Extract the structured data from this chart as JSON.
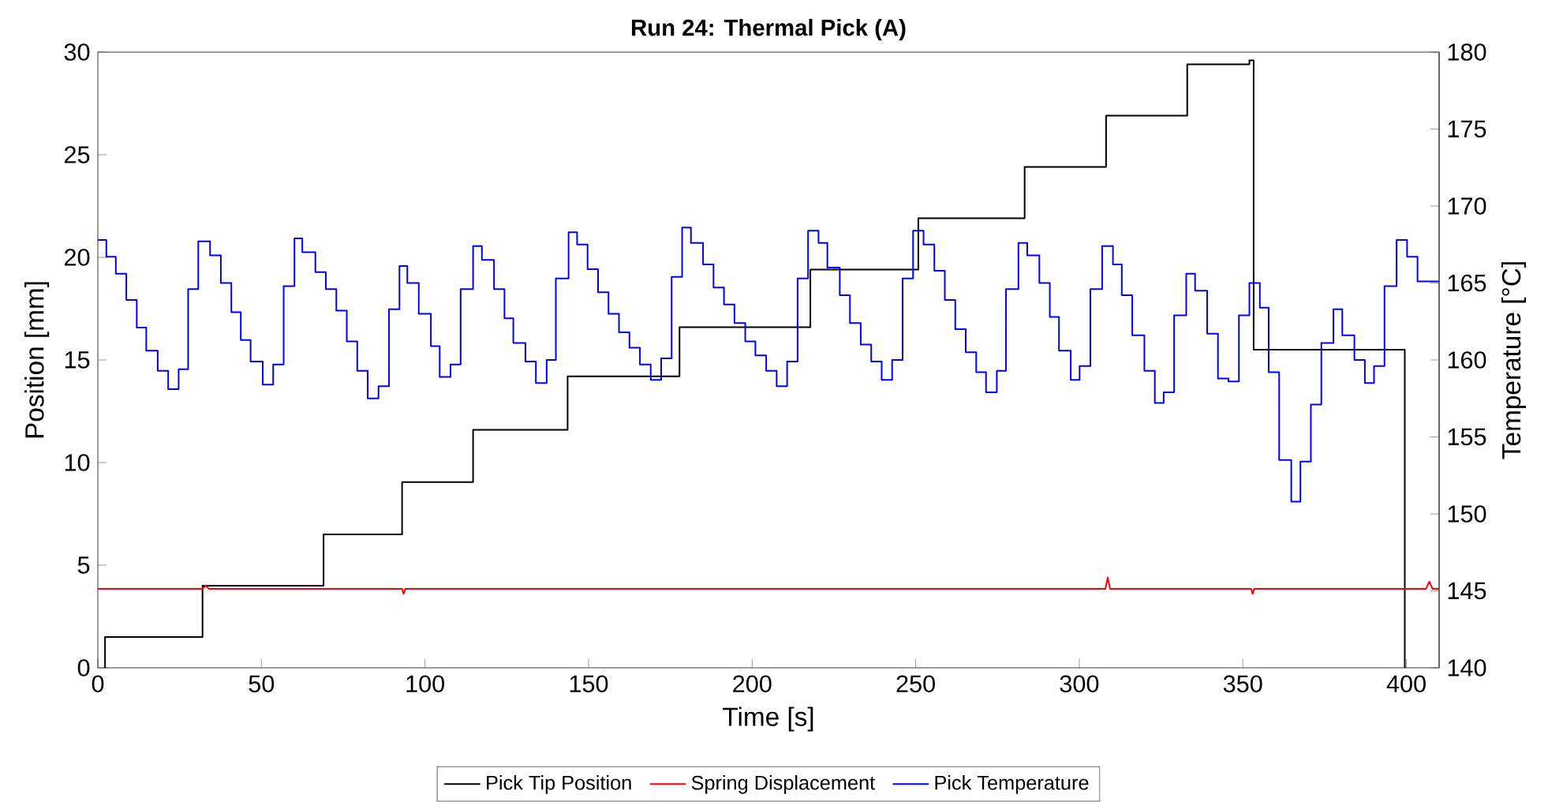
{
  "chart_data": {
    "type": "line",
    "title": "Run 24: Thermal Pick (A)",
    "xlabel": "Time [s]",
    "ylabel": "Position [mm]",
    "y2label": "Temperature [°C]",
    "xlim": [
      0,
      410
    ],
    "xticks": [
      0,
      50,
      100,
      150,
      200,
      250,
      300,
      350,
      400
    ],
    "ylim": [
      0,
      30
    ],
    "yticks": [
      0,
      5,
      10,
      15,
      20,
      25,
      30
    ],
    "y2lim": [
      140,
      180
    ],
    "y2ticks": [
      140,
      145,
      150,
      155,
      160,
      165,
      170,
      175,
      180
    ],
    "legend": "bottom",
    "grid": false,
    "marker": "none",
    "line_style": "solid",
    "series": [
      {
        "name": "Pick Tip Position",
        "type": "step",
        "color": "#000000",
        "x": [
          2.0,
          2.2,
          32,
          69,
          93,
          114.7,
          143.6,
          177.8,
          217.8,
          250.8,
          283.3,
          308.2,
          333,
          352,
          353.3,
          399.5
        ],
        "values": [
          0,
          1.5,
          4.0,
          6.5,
          9.05,
          11.6,
          14.2,
          16.6,
          19.4,
          21.9,
          24.4,
          26.9,
          29.4,
          29.6,
          15.5,
          0
        ]
      },
      {
        "name": "Spring Displacement",
        "color": "#ff0000",
        "x": [
          0,
          32,
          33,
          34,
          93,
          93.5,
          94,
          308,
          308.7,
          309.4,
          352.5,
          353,
          353.5,
          399,
          406,
          407,
          408,
          410
        ],
        "values": [
          3.85,
          3.85,
          4.0,
          3.85,
          3.85,
          3.6,
          3.85,
          3.85,
          4.4,
          3.85,
          3.85,
          3.6,
          3.85,
          3.85,
          3.85,
          4.2,
          3.85,
          3.85
        ]
      },
      {
        "name": "Pick Temperature",
        "type": "step",
        "axis": "y2",
        "color": "#0000ff",
        "x": [
          0,
          2.6,
          5.5,
          8.7,
          11.9,
          14.8,
          18.3,
          21.5,
          24.7,
          27.6,
          30.7,
          34.3,
          37.6,
          40.8,
          43.7,
          46.7,
          50.4,
          53.6,
          56.8,
          60.1,
          62.5,
          66.5,
          69.7,
          72.9,
          76.1,
          79.3,
          82.5,
          85.8,
          89,
          92.2,
          94.6,
          98.1,
          101.8,
          104.5,
          107.8,
          110.9,
          114.7,
          117.4,
          121.1,
          124.3,
          127,
          130.7,
          133.9,
          137.2,
          140,
          143.9,
          146.5,
          149.7,
          152.9,
          156.1,
          159.3,
          162.5,
          165.7,
          169,
          172.2,
          175.4,
          178.6,
          181.3,
          185,
          188.2,
          191.4,
          194.6,
          197.9,
          201,
          204.3,
          207.5,
          210.7,
          213.9,
          217.1,
          220.3,
          223,
          226.8,
          229.9,
          233.2,
          236.4,
          239.6,
          242.8,
          246,
          249.2,
          252.4,
          255.7,
          258.9,
          262.1,
          265.3,
          268.5,
          271.5,
          274.8,
          277.6,
          281.4,
          284.1,
          287.8,
          291,
          293.8,
          297.4,
          300.1,
          303.4,
          307,
          310.3,
          313,
          316.2,
          319.9,
          323.1,
          325.8,
          329,
          332.7,
          335.4,
          339.1,
          342.4,
          345.6,
          348.8,
          352,
          355.2,
          357.9,
          361.1,
          364.8,
          367.6,
          370.8,
          374,
          377.7,
          380.4,
          384.1,
          387.3,
          390.1,
          393.3,
          397,
          400.2,
          403.4,
          410
        ],
        "values": [
          167.8,
          166.7,
          165.6,
          163.9,
          162.1,
          160.6,
          159.3,
          158.1,
          159.4,
          164.6,
          167.7,
          166.8,
          165.0,
          163.1,
          161.3,
          159.9,
          158.4,
          159.7,
          164.8,
          167.9,
          167.0,
          165.7,
          164.6,
          163.2,
          161.2,
          159.3,
          157.5,
          158.3,
          163.3,
          166.1,
          165.0,
          163.0,
          160.9,
          158.9,
          159.7,
          164.6,
          167.4,
          166.5,
          164.6,
          162.7,
          161.1,
          159.9,
          158.5,
          160.0,
          165.3,
          168.3,
          167.5,
          165.9,
          164.4,
          163.0,
          161.8,
          160.8,
          159.7,
          158.7,
          160.1,
          165.4,
          168.6,
          167.6,
          166.2,
          164.7,
          163.6,
          162.4,
          161.2,
          160.3,
          159.3,
          158.3,
          159.9,
          165.3,
          168.4,
          167.6,
          166.0,
          164.2,
          162.4,
          161.0,
          159.9,
          158.7,
          160.0,
          165.3,
          168.4,
          167.5,
          165.8,
          163.9,
          162.0,
          160.5,
          159.2,
          157.9,
          159.3,
          164.6,
          167.6,
          166.8,
          165.0,
          162.8,
          160.6,
          158.7,
          159.6,
          164.6,
          167.4,
          166.2,
          164.2,
          161.6,
          159.3,
          157.2,
          157.9,
          162.9,
          165.6,
          164.5,
          161.7,
          158.8,
          158.6,
          162.9,
          165.0,
          163.4,
          159.2,
          153.5,
          150.8,
          153.4,
          157.1,
          161.1,
          163.3,
          161.6,
          160.0,
          158.5,
          159.6,
          164.8,
          167.8,
          166.7,
          165.1,
          165.1
        ]
      }
    ]
  }
}
